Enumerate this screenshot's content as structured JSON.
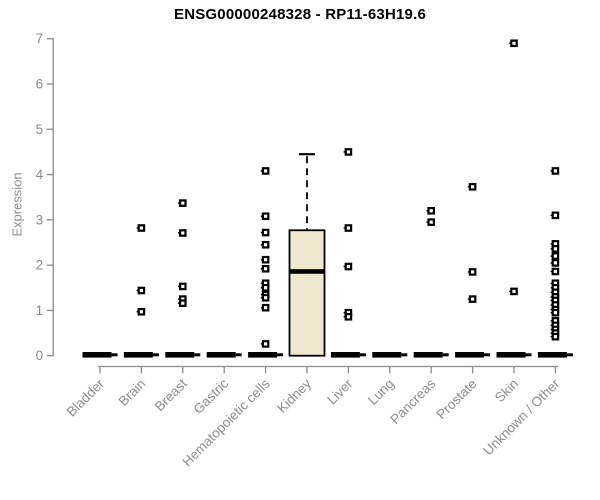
{
  "title": "ENSG00000248328 - RP11-63H19.6",
  "colors": {
    "title": "#000000",
    "axis": "#8c8c8c",
    "tick_label": "#8c8c8c",
    "box_fill": "#ede8ce",
    "box_stroke": "#000000",
    "point": "#000000",
    "background": "#ffffff"
  },
  "chart_data": {
    "type": "boxplot",
    "title": "ENSG00000248328 - RP11-63H19.6",
    "xlabel": "",
    "ylabel": "Expression",
    "ylim": [
      0,
      7
    ],
    "yticks": [
      0,
      1,
      2,
      3,
      4,
      5,
      6,
      7
    ],
    "grid": false,
    "categories": [
      "Bladder",
      "Brain",
      "Breast",
      "Gastric",
      "Hematopoietic cells",
      "Kidney",
      "Liver",
      "Lung",
      "Pancreas",
      "Prostate",
      "Skin",
      "Unknown / Other"
    ],
    "series": [
      {
        "category": "Bladder",
        "collapsed_at_zero": true,
        "box": null,
        "outliers": []
      },
      {
        "category": "Brain",
        "collapsed_at_zero": true,
        "box": null,
        "outliers": [
          2.82,
          1.44,
          0.97
        ]
      },
      {
        "category": "Breast",
        "collapsed_at_zero": true,
        "box": null,
        "outliers": [
          3.37,
          2.71,
          1.53,
          1.25,
          1.16
        ]
      },
      {
        "category": "Gastric",
        "collapsed_at_zero": true,
        "box": null,
        "outliers": []
      },
      {
        "category": "Hematopoietic cells",
        "collapsed_at_zero": true,
        "box": null,
        "outliers": [
          4.08,
          3.08,
          2.72,
          2.45,
          2.12,
          1.92,
          1.6,
          1.5,
          1.35,
          1.28,
          1.06,
          0.26
        ]
      },
      {
        "category": "Kidney",
        "collapsed_at_zero": false,
        "box": {
          "whisker_low": 0,
          "q1": 0,
          "median": 1.86,
          "q3": 2.77,
          "whisker_high": 4.45
        },
        "outliers": []
      },
      {
        "category": "Liver",
        "collapsed_at_zero": true,
        "box": null,
        "outliers": [
          4.5,
          2.82,
          1.97,
          0.95,
          0.86
        ]
      },
      {
        "category": "Lung",
        "collapsed_at_zero": true,
        "box": null,
        "outliers": []
      },
      {
        "category": "Pancreas",
        "collapsed_at_zero": true,
        "box": null,
        "outliers": [
          3.2,
          2.95
        ]
      },
      {
        "category": "Prostate",
        "collapsed_at_zero": true,
        "box": null,
        "outliers": [
          3.73,
          1.85,
          1.25
        ]
      },
      {
        "category": "Skin",
        "collapsed_at_zero": true,
        "box": null,
        "outliers": [
          6.9,
          1.42
        ]
      },
      {
        "category": "Unknown / Other",
        "collapsed_at_zero": true,
        "box": null,
        "outliers": [
          4.08,
          3.1,
          2.47,
          2.36,
          2.2,
          2.05,
          1.86,
          1.6,
          1.5,
          1.4,
          1.3,
          1.22,
          1.12,
          1.02,
          0.95,
          0.77,
          0.67,
          0.58,
          0.5,
          0.42
        ]
      }
    ]
  }
}
